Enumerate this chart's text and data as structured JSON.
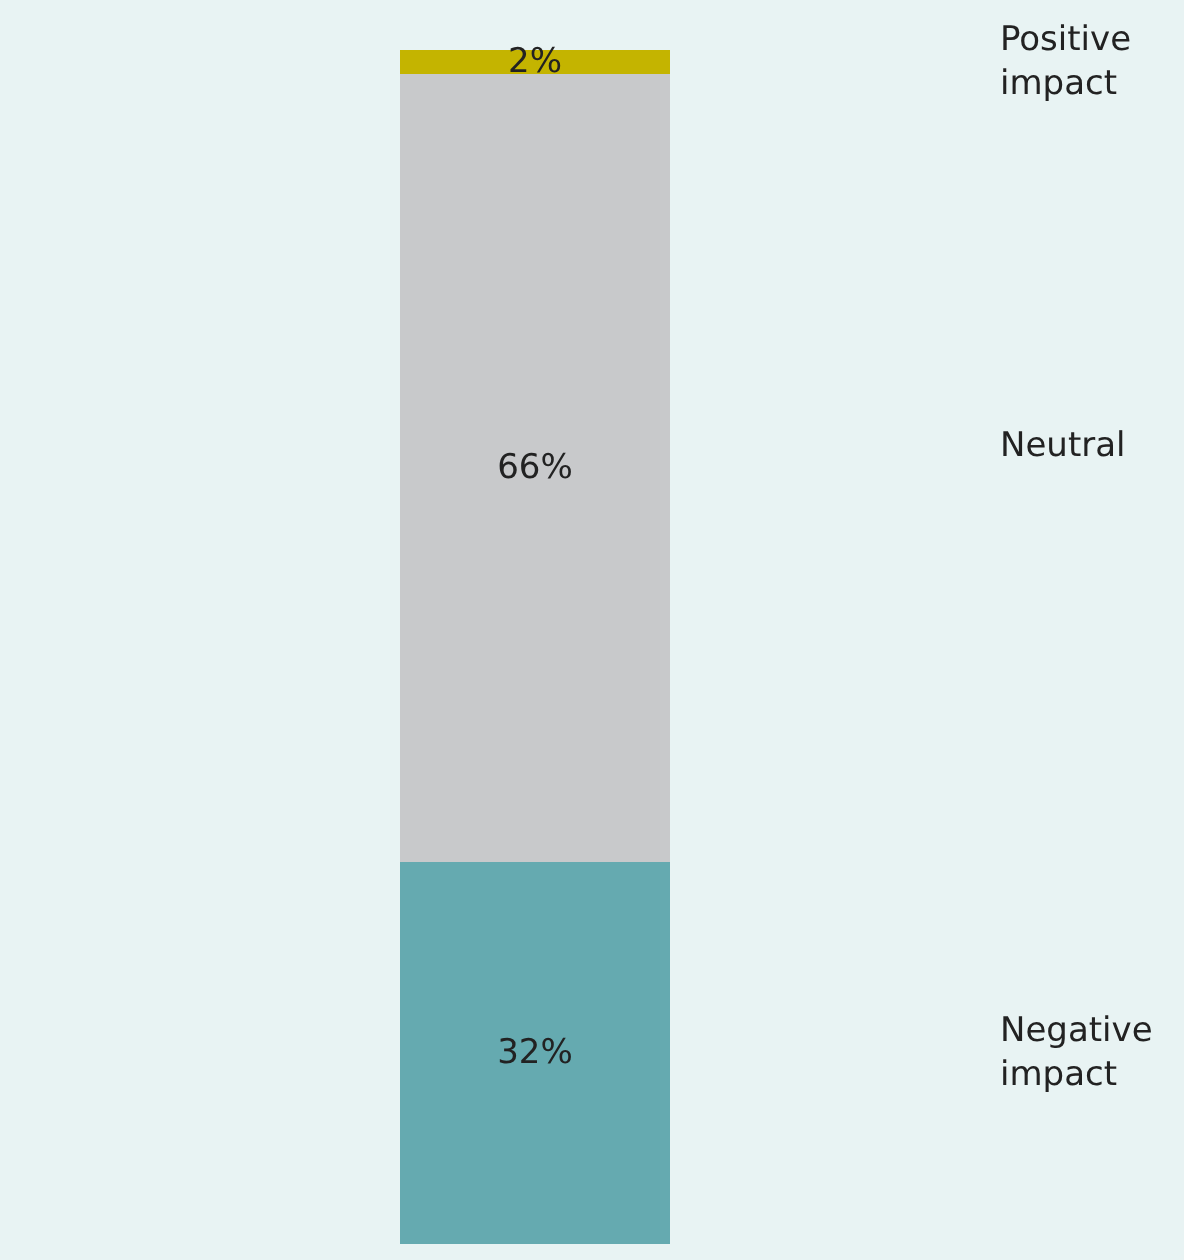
{
  "chart_data": {
    "type": "bar",
    "stacked": true,
    "categories": [
      null
    ],
    "legend": false,
    "series": [
      {
        "name": "Negative impact",
        "color": "#65aab0",
        "values": [
          32
        ],
        "value_labels": [
          "32%"
        ]
      },
      {
        "name": "Neutral",
        "color": "#c8c9cb",
        "values": [
          66
        ],
        "value_labels": [
          "66%"
        ]
      },
      {
        "name": "Positive impact",
        "color": "#c4b400",
        "values": [
          2
        ],
        "value_labels": [
          "2%"
        ]
      }
    ]
  }
}
